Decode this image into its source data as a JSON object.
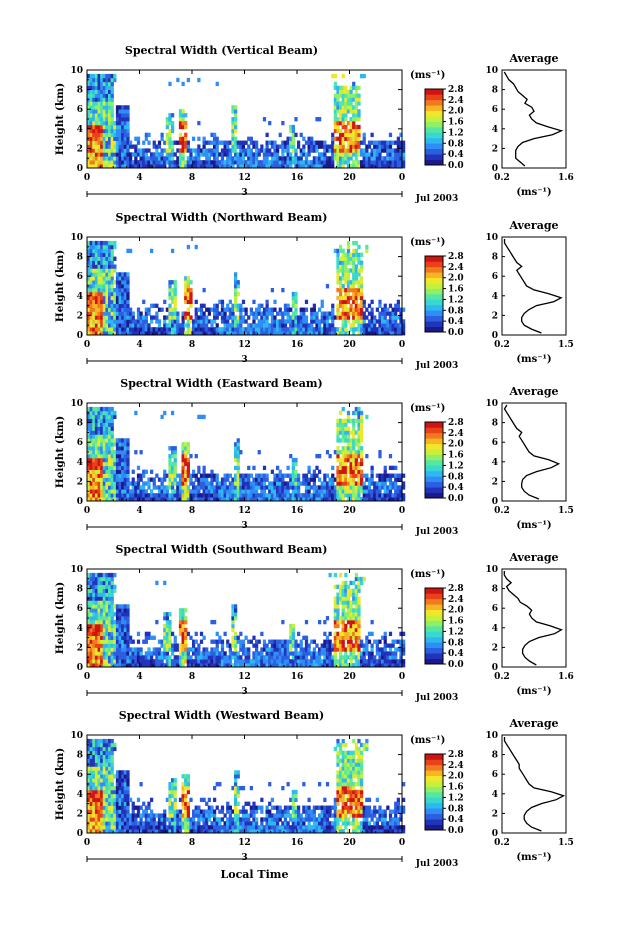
{
  "colors": {
    "colormap": [
      "#1a1a8c",
      "#2233bb",
      "#2c5fe0",
      "#2f8ef5",
      "#2fb8f0",
      "#36d8d0",
      "#55e6a0",
      "#8ef06a",
      "#c8f03a",
      "#f2e62a",
      "#f7b423",
      "#f07a1e",
      "#e8421a",
      "#d01414"
    ],
    "axis": "#000000",
    "profile": "#000000"
  },
  "figure": {
    "xaxis_label": "Local Time",
    "date_label": "Jul 2003",
    "day_label": "3"
  },
  "chart_data": [
    {
      "type": "heatmap",
      "title": "Spectral Width (Vertical Beam)",
      "beam": "vertical",
      "ylabel": "Height (km)",
      "xlim": [
        0,
        24
      ],
      "ylim": [
        0,
        10
      ],
      "xticks": [
        "0",
        "4",
        "8",
        "12",
        "16",
        "20",
        "0"
      ],
      "yticks": [
        "0",
        "2",
        "4",
        "6",
        "8",
        "10"
      ],
      "colorbar": {
        "label": "(ms⁻¹)",
        "ticks": [
          "0.0",
          "0.4",
          "0.8",
          "1.2",
          "1.6",
          "2.0",
          "2.4",
          "2.8"
        ],
        "range": [
          0,
          2.8
        ]
      },
      "profile": {
        "title": "Average",
        "xlabel": "(ms⁻¹)",
        "xticks": [
          "0.2",
          "1.6"
        ],
        "xlim": [
          0.2,
          1.6
        ],
        "height": [
          0.2,
          0.6,
          1.0,
          1.4,
          1.8,
          2.2,
          2.6,
          3.0,
          3.4,
          3.8,
          4.2,
          4.6,
          5.0,
          5.4,
          5.8,
          6.2,
          6.6,
          7.0,
          7.4,
          7.8,
          8.2,
          8.6,
          9.0,
          9.4,
          9.8
        ],
        "width": [
          0.7,
          0.6,
          0.5,
          0.5,
          0.5,
          0.55,
          0.65,
          0.9,
          1.3,
          1.5,
          1.2,
          0.95,
          0.85,
          0.8,
          0.9,
          0.85,
          0.7,
          0.75,
          0.65,
          0.55,
          0.5,
          0.45,
          0.35,
          0.3,
          0.25
        ]
      }
    },
    {
      "type": "heatmap",
      "title": "Spectral Width (Northward Beam)",
      "beam": "north",
      "ylabel": "Height (km)",
      "xlim": [
        0,
        24
      ],
      "ylim": [
        0,
        10
      ],
      "xticks": [
        "0",
        "4",
        "8",
        "12",
        "16",
        "20",
        "0"
      ],
      "yticks": [
        "0",
        "2",
        "4",
        "6",
        "8",
        "10"
      ],
      "colorbar": {
        "label": "(ms⁻¹)",
        "ticks": [
          "0.0",
          "0.4",
          "0.8",
          "1.2",
          "1.6",
          "2.0",
          "2.4",
          "2.8"
        ],
        "range": [
          0,
          2.8
        ]
      },
      "profile": {
        "title": "Average",
        "xlabel": "(ms⁻¹)",
        "xticks": [
          "0.2",
          "1.5"
        ],
        "xlim": [
          0.2,
          1.5
        ],
        "height": [
          0.2,
          0.6,
          1.0,
          1.4,
          1.8,
          2.2,
          2.6,
          3.0,
          3.4,
          3.8,
          4.2,
          4.6,
          5.0,
          5.4,
          5.8,
          6.2,
          6.6,
          7.0,
          7.4,
          7.8,
          8.2,
          8.6,
          9.0,
          9.4,
          9.8
        ],
        "width": [
          1.0,
          0.8,
          0.65,
          0.6,
          0.6,
          0.65,
          0.75,
          0.9,
          1.25,
          1.4,
          1.15,
          0.85,
          0.7,
          0.65,
          0.6,
          0.55,
          0.5,
          0.6,
          0.5,
          0.45,
          0.4,
          0.35,
          0.3,
          0.25,
          0.25
        ]
      }
    },
    {
      "type": "heatmap",
      "title": "Spectral Width (Eastward Beam)",
      "beam": "east",
      "ylabel": "Height (km)",
      "xlim": [
        0,
        24
      ],
      "ylim": [
        0,
        10
      ],
      "xticks": [
        "0",
        "4",
        "8",
        "12",
        "16",
        "20",
        "0"
      ],
      "yticks": [
        "0",
        "2",
        "4",
        "6",
        "8",
        "10"
      ],
      "colorbar": {
        "label": "(ms⁻¹)",
        "ticks": [
          "0.0",
          "0.4",
          "0.8",
          "1.2",
          "1.6",
          "2.0",
          "2.4",
          "2.8"
        ],
        "range": [
          0,
          2.8
        ]
      },
      "profile": {
        "title": "Average",
        "xlabel": "(ms⁻¹)",
        "xticks": [
          "0.2",
          "1.5"
        ],
        "xlim": [
          0.2,
          1.5
        ],
        "height": [
          0.2,
          0.6,
          1.0,
          1.4,
          1.8,
          2.2,
          2.6,
          3.0,
          3.4,
          3.8,
          4.2,
          4.6,
          5.0,
          5.4,
          5.8,
          6.2,
          6.6,
          7.0,
          7.4,
          7.8,
          8.2,
          8.6,
          9.0,
          9.4,
          9.8
        ],
        "width": [
          0.95,
          0.75,
          0.65,
          0.6,
          0.6,
          0.62,
          0.7,
          0.9,
          1.2,
          1.35,
          1.15,
          0.85,
          0.75,
          0.7,
          0.65,
          0.6,
          0.55,
          0.6,
          0.5,
          0.45,
          0.4,
          0.35,
          0.3,
          0.25,
          0.3
        ]
      }
    },
    {
      "type": "heatmap",
      "title": "Spectral Width (Southward Beam)",
      "beam": "south",
      "ylabel": "Height (km)",
      "xlim": [
        0,
        24
      ],
      "ylim": [
        0,
        10
      ],
      "xticks": [
        "0",
        "4",
        "8",
        "12",
        "16",
        "20",
        "0"
      ],
      "yticks": [
        "0",
        "2",
        "4",
        "6",
        "8",
        "10"
      ],
      "colorbar": {
        "label": "(ms⁻¹)",
        "ticks": [
          "0.0",
          "0.4",
          "0.8",
          "1.2",
          "1.6",
          "2.0",
          "2.4",
          "2.8"
        ],
        "range": [
          0,
          2.8
        ]
      },
      "profile": {
        "title": "Average",
        "xlabel": "(ms⁻¹)",
        "xticks": [
          "0.2",
          "1.6"
        ],
        "xlim": [
          0.2,
          1.6
        ],
        "height": [
          0.2,
          0.6,
          1.0,
          1.4,
          1.8,
          2.2,
          2.6,
          3.0,
          3.4,
          3.8,
          4.2,
          4.6,
          5.0,
          5.4,
          5.8,
          6.2,
          6.6,
          7.0,
          7.4,
          7.8,
          8.2,
          8.6,
          9.0,
          9.4,
          9.8
        ],
        "width": [
          0.95,
          0.8,
          0.7,
          0.65,
          0.65,
          0.7,
          0.8,
          1.0,
          1.35,
          1.5,
          1.25,
          0.95,
          0.85,
          0.8,
          0.85,
          0.75,
          0.6,
          0.55,
          0.45,
          0.35,
          0.3,
          0.4,
          0.3,
          0.25,
          0.25
        ]
      }
    },
    {
      "type": "heatmap",
      "title": "Spectral Width (Westward Beam)",
      "beam": "west",
      "ylabel": "Height (km)",
      "xlim": [
        0,
        24
      ],
      "ylim": [
        0,
        10
      ],
      "xticks": [
        "0",
        "4",
        "8",
        "12",
        "16",
        "20",
        "0"
      ],
      "yticks": [
        "0",
        "2",
        "4",
        "6",
        "8",
        "10"
      ],
      "colorbar": {
        "label": "(ms⁻¹)",
        "ticks": [
          "0.0",
          "0.4",
          "0.8",
          "1.2",
          "1.6",
          "2.0",
          "2.4",
          "2.8"
        ],
        "range": [
          0,
          2.8
        ]
      },
      "profile": {
        "title": "Average",
        "xlabel": "(ms⁻¹)",
        "xticks": [
          "0.2",
          "1.5"
        ],
        "xlim": [
          0.2,
          1.5
        ],
        "height": [
          0.2,
          0.6,
          1.0,
          1.4,
          1.8,
          2.2,
          2.6,
          3.0,
          3.4,
          3.8,
          4.2,
          4.6,
          5.0,
          5.4,
          5.8,
          6.2,
          6.6,
          7.0,
          7.4,
          7.8,
          8.2,
          8.6,
          9.0,
          9.4,
          9.8
        ],
        "width": [
          1.0,
          0.8,
          0.7,
          0.65,
          0.65,
          0.7,
          0.8,
          1.0,
          1.3,
          1.45,
          1.2,
          0.85,
          0.75,
          0.7,
          0.65,
          0.6,
          0.55,
          0.55,
          0.5,
          0.45,
          0.4,
          0.35,
          0.3,
          0.25,
          0.25
        ]
      }
    }
  ]
}
